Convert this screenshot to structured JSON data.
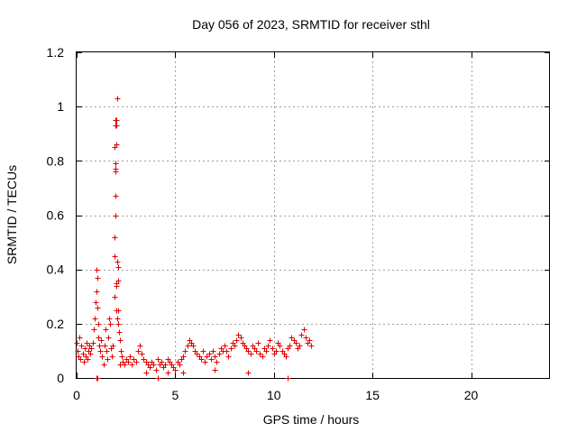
{
  "chart_data": {
    "type": "scatter",
    "title": "Day 056 of 2023, SRMTID for receiver sthl",
    "xlabel": "GPS time / hours",
    "ylabel": "SRMTID / TECUs",
    "xlim": [
      0,
      24
    ],
    "ylim": [
      0,
      1.2
    ],
    "xticks": [
      0,
      5,
      10,
      15,
      20
    ],
    "yticks": [
      0,
      0.2,
      0.4,
      0.6,
      0.8,
      1,
      1.2
    ],
    "ytick_labels": [
      "0",
      "0.2",
      "0.4",
      "0.6",
      "0.8",
      "1",
      "1.2"
    ],
    "grid": true,
    "marker": "+",
    "color": "#e00000",
    "series": [
      {
        "name": "sthl",
        "x": [
          0.0,
          0.05,
          0.1,
          0.15,
          0.2,
          0.25,
          0.3,
          0.35,
          0.4,
          0.45,
          0.5,
          0.55,
          0.6,
          0.65,
          0.7,
          0.75,
          0.8,
          0.85,
          0.9,
          0.95,
          1.0,
          1.0,
          1.05,
          1.05,
          1.1,
          1.1,
          1.15,
          1.2,
          1.25,
          1.3,
          1.35,
          1.4,
          1.45,
          1.5,
          1.55,
          1.6,
          1.65,
          1.7,
          1.75,
          1.8,
          1.85,
          1.9,
          1.9,
          1.95,
          1.95,
          1.97,
          2.0,
          2.0,
          2.02,
          2.05,
          2.05,
          2.08,
          2.1,
          2.1,
          2.12,
          2.15,
          2.2,
          2.25,
          2.3,
          2.35,
          2.4,
          2.5,
          2.6,
          2.7,
          2.8,
          2.9,
          3.0,
          3.1,
          3.2,
          3.3,
          3.4,
          3.5,
          3.6,
          3.7,
          3.8,
          3.9,
          4.0,
          4.1,
          4.2,
          4.3,
          4.4,
          4.5,
          4.6,
          4.7,
          4.8,
          4.9,
          5.0,
          5.1,
          5.2,
          5.3,
          5.4,
          5.5,
          5.6,
          5.7,
          5.8,
          5.9,
          6.0,
          6.1,
          6.2,
          6.3,
          6.4,
          6.5,
          6.6,
          6.7,
          6.8,
          6.9,
          7.0,
          7.1,
          7.2,
          7.3,
          7.4,
          7.5,
          7.6,
          7.7,
          7.8,
          7.9,
          8.0,
          8.1,
          8.2,
          8.3,
          8.4,
          8.5,
          8.6,
          8.7,
          8.8,
          8.9,
          9.0,
          9.1,
          9.2,
          9.3,
          9.4,
          9.5,
          9.6,
          9.7,
          9.8,
          9.9,
          10.0,
          10.1,
          10.2,
          10.3,
          10.4,
          10.5,
          10.6,
          10.7,
          10.8,
          10.9,
          11.0,
          11.1,
          11.2,
          11.3,
          11.4,
          11.5,
          11.6,
          11.7,
          11.8,
          11.9,
          1.0,
          1.05,
          2.2,
          3.5,
          4.1,
          4.6,
          5.4,
          7.0,
          8.7,
          10.7,
          1.95,
          1.97,
          2.0,
          2.03,
          1.92,
          1.98,
          2.02,
          1.96,
          2.04,
          1.94
        ],
        "y": [
          0.13,
          0.1,
          0.08,
          0.15,
          0.07,
          0.12,
          0.09,
          0.06,
          0.11,
          0.08,
          0.13,
          0.07,
          0.1,
          0.12,
          0.09,
          0.11,
          0.13,
          0.18,
          0.22,
          0.28,
          0.32,
          0.4,
          0.37,
          0.26,
          0.2,
          0.15,
          0.12,
          0.1,
          0.14,
          0.08,
          0.05,
          0.12,
          0.18,
          0.1,
          0.07,
          0.15,
          0.22,
          0.2,
          0.11,
          0.08,
          0.12,
          0.3,
          0.52,
          0.67,
          0.77,
          0.79,
          0.86,
          0.93,
          0.95,
          1.03,
          0.43,
          0.41,
          0.36,
          0.25,
          0.2,
          0.17,
          0.14,
          0.1,
          0.08,
          0.06,
          0.05,
          0.07,
          0.06,
          0.08,
          0.05,
          0.07,
          0.06,
          0.1,
          0.12,
          0.09,
          0.07,
          0.06,
          0.05,
          0.04,
          0.06,
          0.05,
          0.03,
          0.07,
          0.05,
          0.06,
          0.04,
          0.05,
          0.07,
          0.06,
          0.05,
          0.04,
          0.03,
          0.06,
          0.05,
          0.07,
          0.08,
          0.1,
          0.12,
          0.14,
          0.13,
          0.12,
          0.1,
          0.09,
          0.08,
          0.07,
          0.1,
          0.06,
          0.08,
          0.09,
          0.07,
          0.1,
          0.08,
          0.06,
          0.09,
          0.11,
          0.1,
          0.12,
          0.1,
          0.08,
          0.11,
          0.13,
          0.12,
          0.14,
          0.16,
          0.15,
          0.13,
          0.12,
          0.11,
          0.1,
          0.09,
          0.12,
          0.11,
          0.1,
          0.13,
          0.09,
          0.08,
          0.11,
          0.1,
          0.12,
          0.14,
          0.11,
          0.09,
          0.1,
          0.13,
          0.12,
          0.1,
          0.09,
          0.08,
          0.11,
          0.12,
          0.15,
          0.14,
          0.13,
          0.11,
          0.12,
          0.16,
          0.18,
          0.15,
          0.13,
          0.14,
          0.12,
          0.0,
          0.0,
          0.05,
          0.02,
          0.0,
          0.02,
          0.02,
          0.03,
          0.02,
          0.0,
          0.95,
          0.76,
          0.34,
          0.35,
          0.45,
          0.93,
          0.25,
          0.6,
          0.22,
          0.85
        ]
      }
    ]
  }
}
